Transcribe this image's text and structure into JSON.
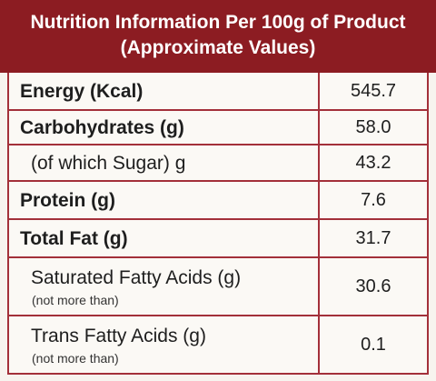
{
  "header": {
    "title": [
      "Nutrition Information Per 100g of Product",
      "(Approximate Values)"
    ]
  },
  "table": {
    "rows": [
      {
        "label": "Energy (Kcal)",
        "value": "545.7"
      },
      {
        "label": "Carbohydrates (g)",
        "value": "58.0"
      },
      {
        "label": "(of which Sugar) g",
        "value": "43.2"
      },
      {
        "label": "Protein (g)",
        "value": "7.6"
      },
      {
        "label": "Total Fat (g)",
        "value": "31.7"
      },
      {
        "label": "Saturated Fatty Acids (g)",
        "note": "(not more than)",
        "value": "30.6"
      },
      {
        "label": "Trans Fatty Acids (g)",
        "note": "(not more than)",
        "value": "0.1"
      }
    ]
  }
}
